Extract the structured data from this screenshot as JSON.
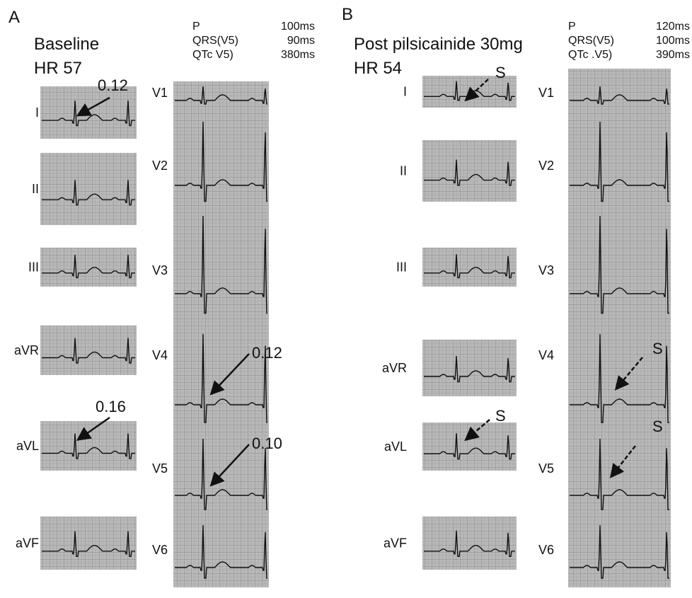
{
  "panels": [
    {
      "label": "A",
      "title": "Baseline",
      "heart_rate": "HR 57",
      "measurements": [
        {
          "name": "P",
          "value": "100ms"
        },
        {
          "name": "QRS(V5)",
          "value": "90ms"
        },
        {
          "name": "QTc  V5)",
          "value": "380ms"
        }
      ],
      "limb_leads": [
        "I",
        "II",
        "III",
        "aVR",
        "aVL",
        "aVF"
      ],
      "chest_leads": [
        "V1",
        "V2",
        "V3",
        "V4",
        "V5",
        "V6"
      ],
      "annotations": [
        "0.12",
        "0.16",
        "0.12",
        "0.10"
      ]
    },
    {
      "label": "B",
      "title": "Post pilsicainide 30mg",
      "heart_rate": "HR 54",
      "measurements": [
        {
          "name": "P",
          "value": "120ms"
        },
        {
          "name": "QRS(V5)",
          "value": "100ms"
        },
        {
          "name": "QTc .V5)",
          "value": "390ms"
        }
      ],
      "limb_leads": [
        "I",
        "II",
        "III",
        "aVR",
        "aVL",
        "aVF"
      ],
      "chest_leads": [
        "V1",
        "V2",
        "V3",
        "V4",
        "V5",
        "V6"
      ],
      "annotations": [
        "S",
        "S",
        "S",
        "S"
      ]
    }
  ]
}
